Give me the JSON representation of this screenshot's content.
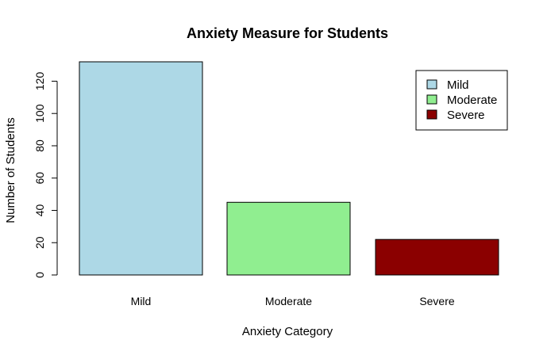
{
  "chart_data": {
    "type": "bar",
    "title": "Anxiety Measure for Students",
    "xlabel": "Anxiety Category",
    "ylabel": "Number of Students",
    "categories": [
      "Mild",
      "Moderate",
      "Severe"
    ],
    "values": [
      132,
      45,
      22
    ],
    "colors": [
      "#add8e6",
      "#90ee90",
      "#8b0000"
    ],
    "ylim": [
      0,
      135
    ],
    "yticks": [
      0,
      20,
      40,
      60,
      80,
      100,
      120
    ],
    "grid": false,
    "legend": {
      "position": "top-right",
      "entries": [
        "Mild",
        "Moderate",
        "Severe"
      ]
    }
  }
}
